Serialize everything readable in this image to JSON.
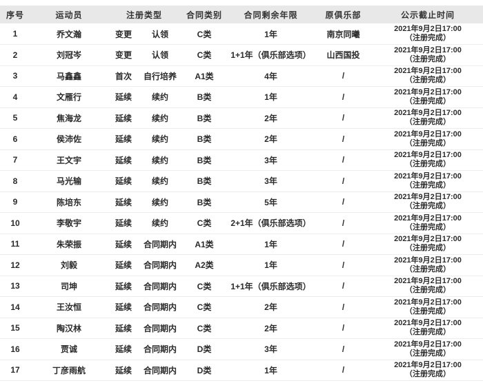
{
  "table": {
    "colors": {
      "header_bg": "#e8e8e8",
      "row_border": "#ededed",
      "text": "#2b2b2b"
    },
    "headers": [
      "序号",
      "运动员",
      "注册类型",
      "合同类别",
      "合同剩余年限",
      "原俱乐部",
      "公示截止时间"
    ],
    "rows": [
      {
        "no": "1",
        "name": "乔文瀚",
        "reg_type": "变更",
        "reg_detail": "认领",
        "contract_class": "C类",
        "remaining_years": "1年",
        "former_club": "南京同曦",
        "deadline_date": "2021年9月2日17:00",
        "deadline_status": "（注册完成）"
      },
      {
        "no": "2",
        "name": "刘冠岑",
        "reg_type": "变更",
        "reg_detail": "认领",
        "contract_class": "C类",
        "remaining_years": "1+1年（俱乐部选项）",
        "former_club": "山西国投",
        "deadline_date": "2021年9月2日17:00",
        "deadline_status": "（注册完成）"
      },
      {
        "no": "3",
        "name": "马鑫鑫",
        "reg_type": "首次",
        "reg_detail": "自行培养",
        "contract_class": "A1类",
        "remaining_years": "4年",
        "former_club": "/",
        "deadline_date": "2021年9月2日17:00",
        "deadline_status": "（注册完成）"
      },
      {
        "no": "4",
        "name": "文雁行",
        "reg_type": "延续",
        "reg_detail": "续约",
        "contract_class": "B类",
        "remaining_years": "1年",
        "former_club": "/",
        "deadline_date": "2021年9月2日17:00",
        "deadline_status": "（注册完成）"
      },
      {
        "no": "5",
        "name": "焦海龙",
        "reg_type": "延续",
        "reg_detail": "续约",
        "contract_class": "B类",
        "remaining_years": "2年",
        "former_club": "/",
        "deadline_date": "2021年9月2日17:00",
        "deadline_status": "（注册完成）"
      },
      {
        "no": "6",
        "name": "侯沛佐",
        "reg_type": "延续",
        "reg_detail": "续约",
        "contract_class": "B类",
        "remaining_years": "2年",
        "former_club": "/",
        "deadline_date": "2021年9月2日17:00",
        "deadline_status": "（注册完成）"
      },
      {
        "no": "7",
        "name": "王文宇",
        "reg_type": "延续",
        "reg_detail": "续约",
        "contract_class": "B类",
        "remaining_years": "3年",
        "former_club": "/",
        "deadline_date": "2021年9月2日17:00",
        "deadline_status": "（注册完成）"
      },
      {
        "no": "8",
        "name": "马光输",
        "reg_type": "延续",
        "reg_detail": "续约",
        "contract_class": "B类",
        "remaining_years": "3年",
        "former_club": "/",
        "deadline_date": "2021年9月2日17:00",
        "deadline_status": "（注册完成）"
      },
      {
        "no": "9",
        "name": "陈培东",
        "reg_type": "延续",
        "reg_detail": "续约",
        "contract_class": "B类",
        "remaining_years": "5年",
        "former_club": "/",
        "deadline_date": "2021年9月2日17:00",
        "deadline_status": "（注册完成）"
      },
      {
        "no": "10",
        "name": "李敬宇",
        "reg_type": "延续",
        "reg_detail": "续约",
        "contract_class": "C类",
        "remaining_years": "2+1年（俱乐部选项）",
        "former_club": "/",
        "deadline_date": "2021年9月2日17:00",
        "deadline_status": "（注册完成）"
      },
      {
        "no": "11",
        "name": "朱荣振",
        "reg_type": "延续",
        "reg_detail": "合同期内",
        "contract_class": "A1类",
        "remaining_years": "1年",
        "former_club": "/",
        "deadline_date": "2021年9月2日17:00",
        "deadline_status": "（注册完成）"
      },
      {
        "no": "12",
        "name": "刘毅",
        "reg_type": "延续",
        "reg_detail": "合同期内",
        "contract_class": "A2类",
        "remaining_years": "1年",
        "former_club": "/",
        "deadline_date": "2021年9月2日17:00",
        "deadline_status": "（注册完成）"
      },
      {
        "no": "13",
        "name": "司坤",
        "reg_type": "延续",
        "reg_detail": "合同期内",
        "contract_class": "C类",
        "remaining_years": "1+1年（俱乐部选项）",
        "former_club": "/",
        "deadline_date": "2021年9月2日17:00",
        "deadline_status": "（注册完成）"
      },
      {
        "no": "14",
        "name": "王汝恒",
        "reg_type": "延续",
        "reg_detail": "合同期内",
        "contract_class": "C类",
        "remaining_years": "2年",
        "former_club": "/",
        "deadline_date": "2021年9月2日17:00",
        "deadline_status": "（注册完成）"
      },
      {
        "no": "15",
        "name": "陶汉林",
        "reg_type": "延续",
        "reg_detail": "合同期内",
        "contract_class": "C类",
        "remaining_years": "2年",
        "former_club": "/",
        "deadline_date": "2021年9月2日17:00",
        "deadline_status": "（注册完成）"
      },
      {
        "no": "16",
        "name": "贾诚",
        "reg_type": "延续",
        "reg_detail": "合同期内",
        "contract_class": "D类",
        "remaining_years": "3年",
        "former_club": "/",
        "deadline_date": "2021年9月2日17:00",
        "deadline_status": "（注册完成）"
      },
      {
        "no": "17",
        "name": "丁彦雨航",
        "reg_type": "延续",
        "reg_detail": "合同期内",
        "contract_class": "D类",
        "remaining_years": "1年",
        "former_club": "/",
        "deadline_date": "2021年9月2日17:00",
        "deadline_status": "（注册完成）"
      }
    ]
  }
}
